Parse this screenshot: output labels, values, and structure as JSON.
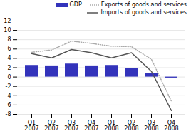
{
  "chart_data": {
    "type": "bar",
    "categories": [
      "Q1 2007",
      "Q2 2007",
      "Q3 2007",
      "Q4 2007",
      "Q1 2008",
      "Q2 2008",
      "Q3 2008",
      "Q4 2008"
    ],
    "series": [
      {
        "name": "GDP",
        "type": "bar",
        "color": "#3333bb",
        "values": [
          2.5,
          2.4,
          2.8,
          2.4,
          2.5,
          1.8,
          0.7,
          -0.2
        ]
      },
      {
        "name": "Exports of goods and services",
        "type": "line",
        "color": "#aaaaaa",
        "line_style": "dotted",
        "values": [
          5.3,
          5.8,
          7.7,
          7.2,
          6.6,
          6.5,
          3.8,
          -5.2
        ]
      },
      {
        "name": "Imports of goods and services",
        "type": "line",
        "color": "#555555",
        "line_style": "solid",
        "values": [
          5.0,
          4.1,
          5.9,
          5.2,
          4.1,
          5.2,
          1.2,
          -7.2
        ]
      }
    ],
    "ylim": [
      -8,
      12
    ],
    "yticks": [
      -8,
      -6,
      -4,
      -2,
      0,
      2,
      4,
      6,
      8,
      10,
      12
    ],
    "grid": true,
    "legend": "upper right"
  }
}
